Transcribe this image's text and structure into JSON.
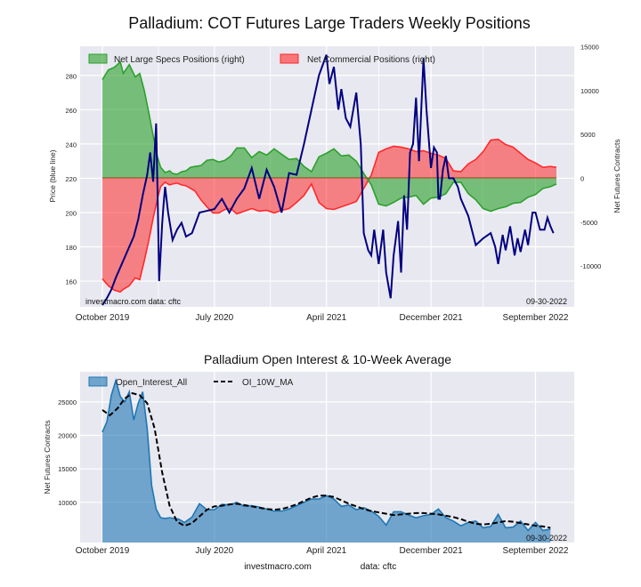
{
  "chart_data": [
    {
      "type": "area+line",
      "title": "Palladium: COT Futures Large Traders Weekly Positions",
      "ylabel_left": "Price (blue line)",
      "ylabel_right": "Net Futures Contracts",
      "ylim_left": [
        145,
        297
      ],
      "ylim_right": [
        -14700,
        15000
      ],
      "left_ticks": [
        160,
        180,
        200,
        220,
        240,
        260,
        280
      ],
      "right_ticks": [
        -10000,
        -5000,
        0,
        5000,
        10000,
        15000
      ],
      "x_ticks": [
        "October 2019",
        "July 2020",
        "April 2021",
        "December 2021",
        "September 2022"
      ],
      "x_tick_positions": [
        0.0,
        0.75,
        1.5,
        2.2,
        2.9
      ],
      "legend": [
        "Net Large Specs Positions (right)",
        "Net Commercial Positions (right)"
      ],
      "source_note": "investmacro.com   data: cftc",
      "date_note": "09-30-2022",
      "series": [
        {
          "name": "Net Large Specs Positions (right)",
          "color": "#2ca02c",
          "x": [
            0.0,
            0.04,
            0.08,
            0.12,
            0.14,
            0.18,
            0.22,
            0.25,
            0.28,
            0.31,
            0.34,
            0.37,
            0.39,
            0.42,
            0.45,
            0.47,
            0.5,
            0.53,
            0.56,
            0.59,
            0.62,
            0.66,
            0.7,
            0.74,
            0.78,
            0.82,
            0.86,
            0.9,
            0.95,
            1.0,
            1.05,
            1.1,
            1.15,
            1.2,
            1.25,
            1.3,
            1.35,
            1.4,
            1.45,
            1.5,
            1.55,
            1.6,
            1.65,
            1.7,
            1.75,
            1.8,
            1.85,
            1.9,
            1.95,
            2.0,
            2.05,
            2.1,
            2.15,
            2.2,
            2.25,
            2.3,
            2.35,
            2.4,
            2.45,
            2.5,
            2.55,
            2.6,
            2.65,
            2.7,
            2.75,
            2.8,
            2.85,
            2.9,
            2.95,
            3.0,
            3.04
          ],
          "values": [
            11200,
            12300,
            12600,
            13200,
            11900,
            12900,
            11500,
            11900,
            10000,
            7500,
            4800,
            2300,
            1200,
            600,
            800,
            500,
            400,
            700,
            800,
            1200,
            1300,
            1400,
            2000,
            2100,
            1800,
            2000,
            2500,
            3400,
            3400,
            2300,
            3000,
            2600,
            3300,
            2700,
            2100,
            2200,
            1300,
            700,
            2400,
            2800,
            3300,
            2500,
            2600,
            1900,
            500,
            -800,
            -3000,
            -3200,
            -2800,
            -2300,
            -2200,
            -2000,
            -3000,
            -2300,
            -2200,
            -1800,
            -500,
            -500,
            -1800,
            -2500,
            -3500,
            -3800,
            -3500,
            -3300,
            -2900,
            -2800,
            -2200,
            -1900,
            -1200,
            -1000,
            -700
          ]
        },
        {
          "name": "Net Commercial Positions (right)",
          "color": "#ff2a2a",
          "x": [
            0.0,
            0.04,
            0.08,
            0.12,
            0.14,
            0.18,
            0.22,
            0.25,
            0.28,
            0.31,
            0.34,
            0.37,
            0.39,
            0.42,
            0.45,
            0.47,
            0.5,
            0.53,
            0.56,
            0.59,
            0.62,
            0.66,
            0.7,
            0.74,
            0.78,
            0.82,
            0.86,
            0.9,
            0.95,
            1.0,
            1.05,
            1.1,
            1.15,
            1.2,
            1.25,
            1.3,
            1.35,
            1.4,
            1.45,
            1.5,
            1.55,
            1.6,
            1.65,
            1.7,
            1.75,
            1.8,
            1.85,
            1.9,
            1.95,
            2.0,
            2.05,
            2.1,
            2.15,
            2.2,
            2.25,
            2.3,
            2.35,
            2.4,
            2.45,
            2.5,
            2.55,
            2.6,
            2.65,
            2.7,
            2.75,
            2.8,
            2.85,
            2.9,
            2.95,
            3.0,
            3.04
          ],
          "values": [
            -11500,
            -12300,
            -12800,
            -13000,
            -12700,
            -12300,
            -11400,
            -11600,
            -9500,
            -7200,
            -4600,
            -2300,
            -1000,
            -500,
            -800,
            -700,
            -600,
            -800,
            -900,
            -1200,
            -1500,
            -2500,
            -3300,
            -4000,
            -4000,
            -3600,
            -3500,
            -4100,
            -3800,
            -3500,
            -3800,
            -3700,
            -4000,
            -3700,
            -3500,
            -2800,
            -2000,
            -700,
            -2800,
            -3500,
            -3600,
            -3300,
            -3000,
            -2700,
            -1200,
            300,
            2900,
            3300,
            3600,
            3500,
            3300,
            3000,
            3100,
            2800,
            2600,
            2200,
            800,
            700,
            1600,
            2100,
            3000,
            4300,
            4400,
            3800,
            3500,
            2800,
            2100,
            1700,
            1200,
            1300,
            1200
          ]
        },
        {
          "name": "Price (blue line)",
          "color": "#000080",
          "x": [
            0.0,
            0.03,
            0.06,
            0.09,
            0.12,
            0.15,
            0.18,
            0.21,
            0.24,
            0.27,
            0.3,
            0.32,
            0.34,
            0.36,
            0.37,
            0.38,
            0.4,
            0.41,
            0.42,
            0.44,
            0.47,
            0.5,
            0.53,
            0.56,
            0.6,
            0.65,
            0.7,
            0.75,
            0.8,
            0.85,
            0.9,
            0.95,
            1.0,
            1.05,
            1.1,
            1.15,
            1.2,
            1.25,
            1.3,
            1.35,
            1.4,
            1.45,
            1.5,
            1.52,
            1.55,
            1.58,
            1.6,
            1.63,
            1.66,
            1.7,
            1.73,
            1.75,
            1.78,
            1.8,
            1.82,
            1.85,
            1.88,
            1.9,
            1.93,
            1.95,
            1.98,
            2.0,
            2.02,
            2.04,
            2.06,
            2.08,
            2.1,
            2.12,
            2.15,
            2.17,
            2.2,
            2.22,
            2.24,
            2.25,
            2.26,
            2.28,
            2.3,
            2.32,
            2.35,
            2.38,
            2.4,
            2.45,
            2.5,
            2.55,
            2.6,
            2.63,
            2.65,
            2.68,
            2.7,
            2.73,
            2.76,
            2.78,
            2.8,
            2.83,
            2.85,
            2.88,
            2.9,
            2.93,
            2.96,
            2.98,
            3.0,
            3.02
          ],
          "values": [
            146,
            150,
            155,
            162,
            168,
            174,
            180,
            186,
            196,
            210,
            222,
            235,
            218,
            252,
            210,
            160,
            193,
            205,
            215,
            200,
            184,
            190,
            194,
            186,
            188,
            200,
            201,
            202,
            208,
            200,
            208,
            214,
            226,
            208,
            225,
            215,
            200,
            223,
            222,
            240,
            260,
            280,
            292,
            275,
            285,
            260,
            272,
            255,
            250,
            270,
            240,
            188,
            178,
            175,
            190,
            170,
            190,
            165,
            150,
            175,
            195,
            165,
            210,
            190,
            235,
            240,
            267,
            230,
            290,
            260,
            226,
            238,
            235,
            208,
            208,
            225,
            233,
            220,
            220,
            215,
            208,
            198,
            181,
            185,
            188,
            180,
            170,
            187,
            178,
            192,
            175,
            185,
            177,
            190,
            181,
            200,
            200,
            190,
            190,
            197,
            192,
            188
          ]
        }
      ]
    },
    {
      "type": "area+line",
      "title": "Palladium Open Interest & 10-Week Average",
      "ylabel": "Net Futures Contracts",
      "ylim": [
        4000,
        29500
      ],
      "y_ticks": [
        10000,
        15000,
        20000,
        25000
      ],
      "x_ticks": [
        "October 2019",
        "July 2020",
        "April 2021",
        "December 2021",
        "September 2022"
      ],
      "x_tick_positions": [
        0.0,
        0.75,
        1.5,
        2.2,
        2.9
      ],
      "legend": [
        "Open_Interest_All",
        "OI_10W_MA"
      ],
      "date_note": "09-30-2022",
      "series": [
        {
          "name": "Open_Interest_All",
          "color": "#1f77b4",
          "x": [
            0.0,
            0.03,
            0.06,
            0.09,
            0.12,
            0.15,
            0.18,
            0.21,
            0.24,
            0.27,
            0.3,
            0.33,
            0.36,
            0.39,
            0.42,
            0.45,
            0.48,
            0.51,
            0.55,
            0.6,
            0.65,
            0.7,
            0.75,
            0.8,
            0.85,
            0.9,
            0.95,
            1.0,
            1.05,
            1.1,
            1.15,
            1.2,
            1.25,
            1.3,
            1.35,
            1.4,
            1.45,
            1.5,
            1.55,
            1.6,
            1.65,
            1.7,
            1.75,
            1.8,
            1.85,
            1.9,
            1.95,
            2.0,
            2.05,
            2.1,
            2.15,
            2.2,
            2.25,
            2.3,
            2.35,
            2.4,
            2.45,
            2.5,
            2.55,
            2.6,
            2.65,
            2.7,
            2.75,
            2.8,
            2.85,
            2.9,
            2.95,
            3.0
          ],
          "values": [
            20500,
            22000,
            26000,
            28200,
            25800,
            25000,
            26500,
            22300,
            24800,
            26500,
            21000,
            12500,
            9000,
            7700,
            7600,
            7700,
            7600,
            7500,
            7000,
            7800,
            9800,
            8900,
            8900,
            9700,
            9600,
            10000,
            9400,
            9500,
            9300,
            9000,
            8700,
            8700,
            9000,
            9500,
            10000,
            10500,
            10500,
            11000,
            10500,
            9400,
            9600,
            8900,
            9200,
            8700,
            7900,
            6600,
            8600,
            8600,
            8100,
            7700,
            8000,
            8200,
            9000,
            7700,
            7200,
            6500,
            7000,
            7200,
            6200,
            6400,
            8200,
            6200,
            6300,
            7200,
            5800,
            7000,
            5800,
            6000
          ]
        },
        {
          "name": "OI_10W_MA",
          "color": "#000000",
          "x": [
            0.0,
            0.05,
            0.1,
            0.15,
            0.2,
            0.25,
            0.3,
            0.35,
            0.4,
            0.45,
            0.5,
            0.55,
            0.6,
            0.65,
            0.7,
            0.75,
            0.8,
            0.85,
            0.9,
            0.95,
            1.0,
            1.05,
            1.1,
            1.15,
            1.2,
            1.25,
            1.3,
            1.35,
            1.4,
            1.45,
            1.5,
            1.55,
            1.6,
            1.65,
            1.7,
            1.75,
            1.8,
            1.85,
            1.9,
            1.95,
            2.0,
            2.05,
            2.1,
            2.15,
            2.2,
            2.25,
            2.3,
            2.35,
            2.4,
            2.45,
            2.5,
            2.55,
            2.6,
            2.65,
            2.7,
            2.75,
            2.8,
            2.85,
            2.9,
            2.95,
            3.0
          ],
          "values": [
            23800,
            23000,
            24000,
            25500,
            26300,
            26000,
            24800,
            21000,
            14500,
            9500,
            7100,
            6500,
            6900,
            7900,
            8900,
            9400,
            9500,
            9700,
            9800,
            9600,
            9400,
            9200,
            9000,
            8900,
            9000,
            9300,
            9700,
            10200,
            10700,
            11000,
            11000,
            10800,
            10300,
            9800,
            9400,
            9000,
            8700,
            8500,
            8300,
            8100,
            8200,
            8300,
            8400,
            8400,
            8300,
            8200,
            8000,
            7800,
            7500,
            7100,
            6800,
            6700,
            6800,
            7000,
            7200,
            7100,
            6900,
            6700,
            6500,
            6400,
            6200
          ]
        }
      ]
    },
    {
      "type": "footer",
      "site": "investmacro.com",
      "source": "data: cftc"
    }
  ]
}
